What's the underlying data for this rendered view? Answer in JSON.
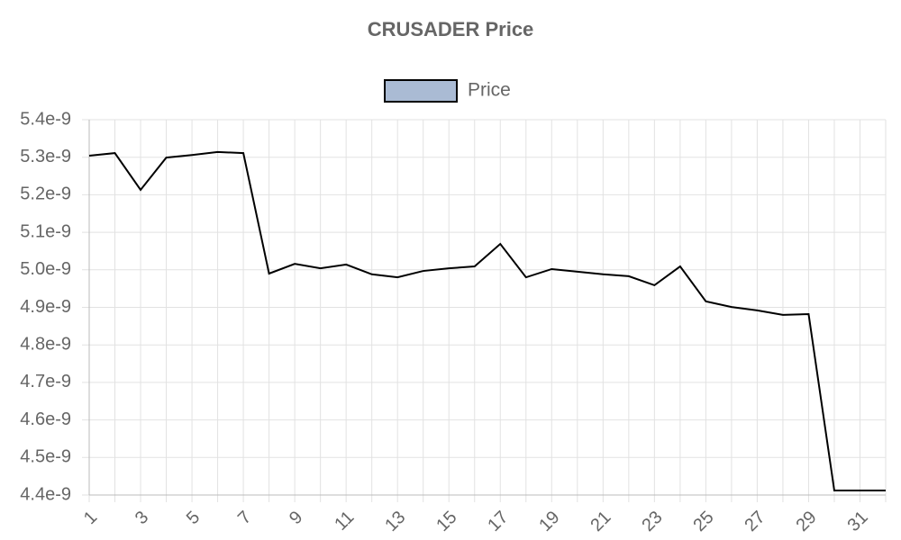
{
  "chart_data": {
    "type": "line",
    "title": "CRUSADER Price",
    "categories": [
      1,
      null,
      3,
      null,
      5,
      null,
      7,
      null,
      9,
      null,
      11,
      null,
      13,
      null,
      15,
      null,
      17,
      null,
      19,
      null,
      21,
      null,
      23,
      null,
      25,
      null,
      27,
      null,
      29,
      null,
      31,
      null
    ],
    "series": [
      {
        "name": "Price",
        "color": "#000000",
        "legend_fill": "#aabbd4",
        "values": [
          5.304e-09,
          5.311e-09,
          5.213e-09,
          5.299e-09,
          5.306e-09,
          5.314e-09,
          5.311e-09,
          4.99e-09,
          5.016e-09,
          5.004e-09,
          5.014e-09,
          4.988e-09,
          4.98e-09,
          4.997e-09,
          5.004e-09,
          5.009e-09,
          5.069e-09,
          4.98e-09,
          5.002e-09,
          4.995e-09,
          4.988e-09,
          4.983e-09,
          4.959e-09,
          5.009e-09,
          4.916e-09,
          4.901e-09,
          4.892e-09,
          4.88e-09,
          4.882e-09,
          4.412e-09,
          4.412e-09,
          4.412e-09
        ]
      }
    ],
    "ylim": [
      4.4e-09,
      5.4e-09
    ],
    "yticks": [
      {
        "value": 4.4e-09,
        "label": "4.4e-9"
      },
      {
        "value": 4.5e-09,
        "label": "4.5e-9"
      },
      {
        "value": 4.6e-09,
        "label": "4.6e-9"
      },
      {
        "value": 4.7e-09,
        "label": "4.7e-9"
      },
      {
        "value": 4.8e-09,
        "label": "4.8e-9"
      },
      {
        "value": 4.9e-09,
        "label": "4.9e-9"
      },
      {
        "value": 5e-09,
        "label": "5.0e-9"
      },
      {
        "value": 5.1e-09,
        "label": "5.1e-9"
      },
      {
        "value": 5.2e-09,
        "label": "5.2e-9"
      },
      {
        "value": 5.3e-09,
        "label": "5.3e-9"
      },
      {
        "value": 5.4e-09,
        "label": "5.4e-9"
      }
    ],
    "grid": true,
    "legend": "top"
  }
}
